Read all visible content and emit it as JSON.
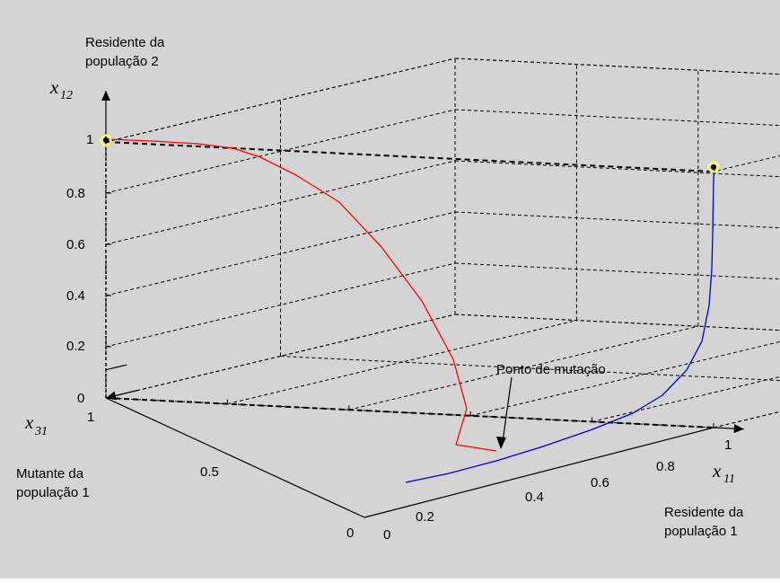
{
  "colors": {
    "background": "#d4d4d4",
    "trajectory_red": "#ff0000",
    "trajectory_blue": "#0000cc",
    "endpoint_marker": "#ffff66",
    "axes": "#000000"
  },
  "chart_data": {
    "type": "line",
    "plot_kind": "3d-phase-trajectory",
    "axes": {
      "x11": {
        "symbol": "x",
        "subscript": "11",
        "label_lines": [
          "Residente da",
          "população 1"
        ],
        "ticks": [
          {
            "value": 0,
            "label": "0"
          },
          {
            "value": 0.2,
            "label": "0.2"
          },
          {
            "value": 0.4,
            "label": "0.4"
          },
          {
            "value": 0.6,
            "label": "0.6"
          },
          {
            "value": 0.8,
            "label": "0.8"
          },
          {
            "value": 1,
            "label": "1"
          }
        ],
        "range": [
          0,
          1
        ]
      },
      "x31": {
        "symbol": "x",
        "subscript": "31",
        "label_lines": [
          "Mutante da",
          "população 1"
        ],
        "ticks": [
          {
            "value": 0,
            "label": "0"
          },
          {
            "value": 0.5,
            "label": "0.5"
          },
          {
            "value": 1,
            "label": "1"
          }
        ],
        "range": [
          0,
          1
        ]
      },
      "x12": {
        "symbol": "x",
        "subscript": "12",
        "label_lines": [
          "Residente da",
          "população 2"
        ],
        "ticks": [
          {
            "value": 0,
            "label": "0"
          },
          {
            "value": 0.2,
            "label": "0.2"
          },
          {
            "value": 0.4,
            "label": "0.4"
          },
          {
            "value": 0.6,
            "label": "0.6"
          },
          {
            "value": 0.8,
            "label": "0.8"
          },
          {
            "value": 1,
            "label": "1"
          }
        ],
        "range": [
          0,
          1
        ]
      }
    },
    "grid": true,
    "annotation": {
      "text": "Ponto de mutação",
      "point": {
        "x11": 0.28,
        "x31": 0.0,
        "x12": 0.0
      }
    },
    "series": [
      {
        "color": "#ff0000",
        "points": [
          {
            "x11": 0.28,
            "x31": 0.0,
            "x12": 0.0
          },
          {
            "x11": 0.16,
            "x31": 0.07,
            "x12": 0.0
          },
          {
            "x11": 0.09,
            "x31": 0.17,
            "x12": 0.02
          },
          {
            "x11": 0.06,
            "x31": 0.23,
            "x12": 0.1
          },
          {
            "x11": 0.05,
            "x31": 0.29,
            "x12": 0.2
          },
          {
            "x11": 0.04,
            "x31": 0.36,
            "x12": 0.3
          },
          {
            "x11": 0.04,
            "x31": 0.43,
            "x12": 0.4
          },
          {
            "x11": 0.03,
            "x31": 0.51,
            "x12": 0.5
          },
          {
            "x11": 0.03,
            "x31": 0.58,
            "x12": 0.6
          },
          {
            "x11": 0.02,
            "x31": 0.66,
            "x12": 0.7
          },
          {
            "x11": 0.02,
            "x31": 0.74,
            "x12": 0.8
          },
          {
            "x11": 0.01,
            "x31": 0.82,
            "x12": 0.88
          },
          {
            "x11": 0.01,
            "x31": 0.88,
            "x12": 0.93
          },
          {
            "x11": 0.0,
            "x31": 0.94,
            "x12": 0.97
          },
          {
            "x11": 0.0,
            "x31": 1.0,
            "x12": 1.0
          }
        ]
      },
      {
        "color": "#0000cc",
        "points": [
          {
            "x11": 0.05,
            "x31": 0.0,
            "x12": 0.0
          },
          {
            "x11": 0.2,
            "x31": 0.0,
            "x12": 0.0
          },
          {
            "x11": 0.28,
            "x31": 0.0,
            "x12": 0.0
          },
          {
            "x11": 0.4,
            "x31": 0.0,
            "x12": 0.0
          },
          {
            "x11": 0.5,
            "x31": 0.0,
            "x12": 0.0
          },
          {
            "x11": 0.6,
            "x31": 0.0,
            "x12": 0.01
          },
          {
            "x11": 0.7,
            "x31": 0.0,
            "x12": 0.02
          },
          {
            "x11": 0.8,
            "x31": 0.0,
            "x12": 0.07
          },
          {
            "x11": 0.87,
            "x31": 0.0,
            "x12": 0.13
          },
          {
            "x11": 0.92,
            "x31": 0.0,
            "x12": 0.2
          },
          {
            "x11": 0.96,
            "x31": 0.0,
            "x12": 0.3
          },
          {
            "x11": 0.98,
            "x31": 0.0,
            "x12": 0.4
          },
          {
            "x11": 0.99,
            "x31": 0.0,
            "x12": 0.5
          },
          {
            "x11": 1.0,
            "x31": 0.0,
            "x12": 0.65
          },
          {
            "x11": 1.0,
            "x31": 0.0,
            "x12": 0.8
          },
          {
            "x11": 1.0,
            "x31": 0.0,
            "x12": 0.97
          }
        ]
      }
    ],
    "endpoints": [
      {
        "x11": 1,
        "x31": 0,
        "x12": 1
      },
      {
        "x11": 0,
        "x31": 1,
        "x12": 1
      }
    ]
  }
}
